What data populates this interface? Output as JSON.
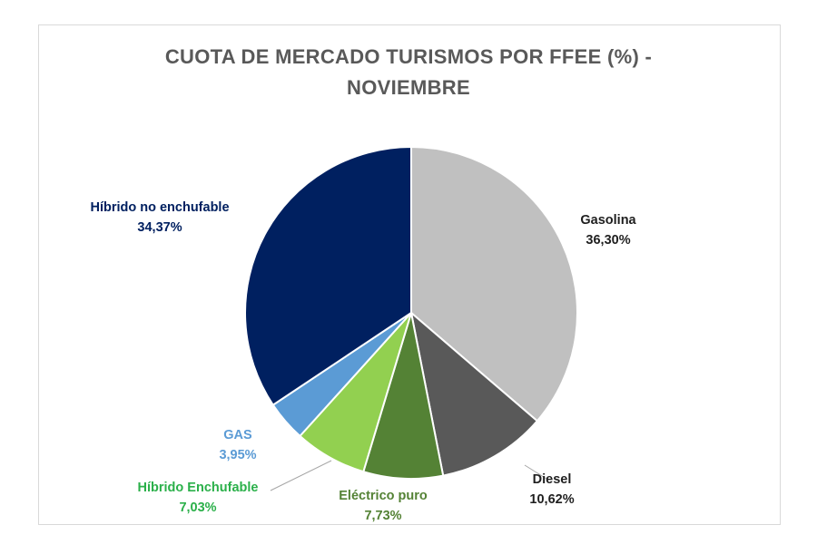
{
  "chart_data": {
    "type": "pie",
    "title_lines": [
      "CUOTA DE MERCADO TURISMOS POR FFEE (%) -",
      "NOVIEMBRE"
    ],
    "slices": [
      {
        "name": "Gasolina",
        "value": 36.3,
        "value_label": "36,30%",
        "color": "#c0c0c0",
        "label_color": "#1f1f1f"
      },
      {
        "name": "Diesel",
        "value": 10.62,
        "value_label": "10,62%",
        "color": "#595959",
        "label_color": "#1f1f1f"
      },
      {
        "name": "Eléctrico puro",
        "value": 7.73,
        "value_label": "7,73%",
        "color": "#548235",
        "label_color": "#548235"
      },
      {
        "name": "Híbrido Enchufable",
        "value": 7.03,
        "value_label": "7,03%",
        "color": "#92d050",
        "label_color": "#2bb04a"
      },
      {
        "name": "GAS",
        "value": 3.95,
        "value_label": "3,95%",
        "color": "#5b9bd5",
        "label_color": "#5b9bd5"
      },
      {
        "name": "Híbrido no enchufable",
        "value": 34.37,
        "value_label": "34,37%",
        "color": "#002060",
        "label_color": "#002060"
      }
    ],
    "start": "12 o'clock",
    "direction": "clockwise",
    "legend": "none",
    "data_labels": "outside"
  }
}
